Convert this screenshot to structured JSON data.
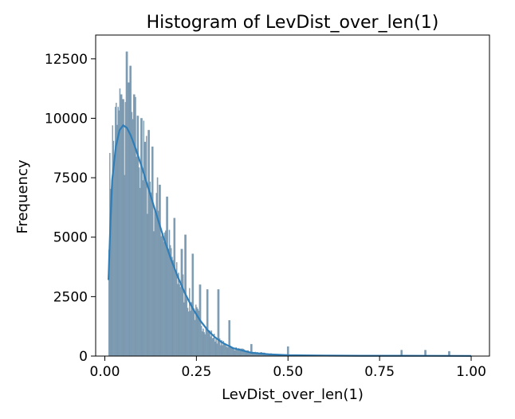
{
  "chart_data": {
    "type": "histogram",
    "title": "Histogram of LevDist_over_len(1)",
    "xlabel": "LevDist_over_len(1)",
    "ylabel": "Frequency",
    "xlim": [
      -0.025,
      1.05
    ],
    "ylim": [
      0,
      13500
    ],
    "xticks": [
      0.0,
      0.25,
      0.5,
      0.75,
      1.0
    ],
    "xtick_labels": [
      "0.00",
      "0.25",
      "0.50",
      "0.75",
      "1.00"
    ],
    "yticks": [
      0,
      2500,
      5000,
      7500,
      10000,
      12500
    ],
    "ytick_labels": [
      "0",
      "2500",
      "5000",
      "7500",
      "10000",
      "12500"
    ],
    "grid": false,
    "legend": "none",
    "bar_color": "#6f8fa8",
    "kde_color": "#2f7eb8",
    "bin_width": 0.0025,
    "x_start": 0.01,
    "x_end": 1.0,
    "envelope": [
      [
        0.01,
        5400
      ],
      [
        0.015,
        7600
      ],
      [
        0.02,
        8600
      ],
      [
        0.03,
        9400
      ],
      [
        0.04,
        9700
      ],
      [
        0.055,
        9800
      ],
      [
        0.07,
        9500
      ],
      [
        0.085,
        9000
      ],
      [
        0.1,
        8400
      ],
      [
        0.12,
        7500
      ],
      [
        0.14,
        6400
      ],
      [
        0.16,
        5300
      ],
      [
        0.18,
        4300
      ],
      [
        0.2,
        3400
      ],
      [
        0.22,
        2650
      ],
      [
        0.24,
        2000
      ],
      [
        0.26,
        1500
      ],
      [
        0.28,
        1080
      ],
      [
        0.3,
        760
      ],
      [
        0.32,
        540
      ],
      [
        0.35,
        330
      ],
      [
        0.4,
        170
      ],
      [
        0.45,
        90
      ],
      [
        0.5,
        50
      ],
      [
        0.6,
        25
      ],
      [
        0.7,
        18
      ],
      [
        0.8,
        15
      ],
      [
        0.9,
        12
      ],
      [
        1.0,
        8
      ]
    ],
    "spikes": [
      [
        0.06,
        12800
      ],
      [
        0.065,
        11500
      ],
      [
        0.07,
        12200
      ],
      [
        0.05,
        10800
      ],
      [
        0.045,
        11000
      ],
      [
        0.08,
        11000
      ],
      [
        0.09,
        10100
      ],
      [
        0.1,
        10000
      ],
      [
        0.11,
        9000
      ],
      [
        0.12,
        9500
      ],
      [
        0.13,
        8800
      ],
      [
        0.15,
        7200
      ],
      [
        0.17,
        6700
      ],
      [
        0.19,
        5800
      ],
      [
        0.21,
        4500
      ],
      [
        0.22,
        5100
      ],
      [
        0.24,
        4300
      ],
      [
        0.26,
        3000
      ],
      [
        0.28,
        2800
      ],
      [
        0.31,
        2800
      ],
      [
        0.34,
        1500
      ],
      [
        0.4,
        500
      ],
      [
        0.5,
        400
      ],
      [
        0.81,
        250
      ],
      [
        0.875,
        250
      ],
      [
        0.94,
        200
      ]
    ],
    "kde": [
      [
        0.01,
        3200
      ],
      [
        0.015,
        5500
      ],
      [
        0.02,
        7400
      ],
      [
        0.03,
        8800
      ],
      [
        0.04,
        9500
      ],
      [
        0.05,
        9700
      ],
      [
        0.06,
        9600
      ],
      [
        0.07,
        9300
      ],
      [
        0.08,
        8900
      ],
      [
        0.1,
        8000
      ],
      [
        0.12,
        7000
      ],
      [
        0.14,
        6000
      ],
      [
        0.16,
        5000
      ],
      [
        0.18,
        4100
      ],
      [
        0.2,
        3300
      ],
      [
        0.22,
        2600
      ],
      [
        0.24,
        2000
      ],
      [
        0.26,
        1500
      ],
      [
        0.28,
        1100
      ],
      [
        0.3,
        800
      ],
      [
        0.32,
        570
      ],
      [
        0.35,
        330
      ],
      [
        0.4,
        140
      ],
      [
        0.45,
        70
      ],
      [
        0.5,
        40
      ],
      [
        0.6,
        20
      ],
      [
        0.7,
        15
      ],
      [
        0.8,
        12
      ],
      [
        0.9,
        10
      ],
      [
        1.0,
        8
      ]
    ]
  }
}
